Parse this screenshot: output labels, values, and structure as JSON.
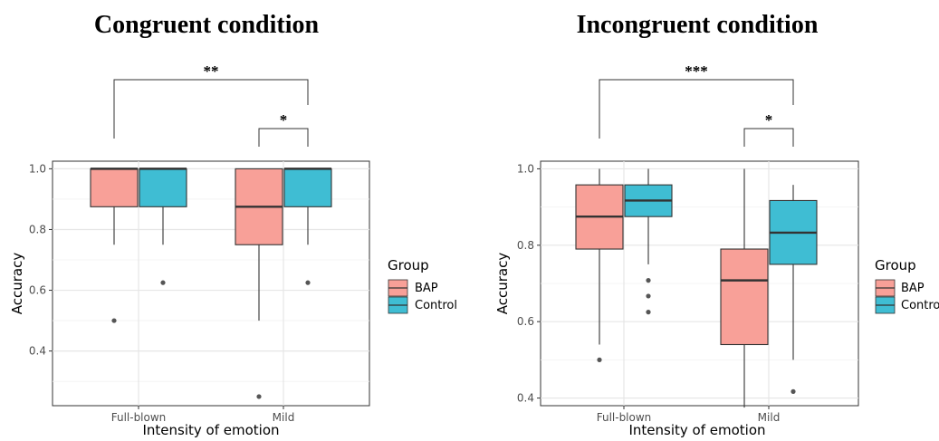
{
  "chart_data": [
    {
      "type": "box",
      "title": "Congruent condition",
      "xlabel": "Intensity of emotion",
      "ylabel": "Accuracy",
      "categories": [
        "Full-blown",
        "Mild"
      ],
      "ylim": [
        0.22,
        1.025
      ],
      "yticks": [
        "0.4",
        "0.6",
        "0.8",
        "1.0"
      ],
      "grid": true,
      "legend": {
        "title": "Group",
        "position": "right",
        "items": [
          "BAP",
          "Control"
        ]
      },
      "series": [
        {
          "name": "BAP",
          "color": "#F8A098",
          "boxes": [
            {
              "category": "Full-blown",
              "q1": 0.875,
              "median": 1.0,
              "q3": 1.0,
              "whisker_low": 0.75,
              "whisker_high": 1.0,
              "outliers": [
                0.5
              ]
            },
            {
              "category": "Mild",
              "q1": 0.75,
              "median": 0.875,
              "q3": 1.0,
              "whisker_low": 0.5,
              "whisker_high": 1.0,
              "outliers": [
                0.25
              ]
            }
          ]
        },
        {
          "name": "Control",
          "color": "#3FBDD3",
          "boxes": [
            {
              "category": "Full-blown",
              "q1": 0.875,
              "median": 1.0,
              "q3": 1.0,
              "whisker_low": 0.75,
              "whisker_high": 1.0,
              "outliers": [
                0.625
              ]
            },
            {
              "category": "Mild",
              "q1": 0.875,
              "median": 1.0,
              "q3": 1.0,
              "whisker_low": 0.75,
              "whisker_high": 1.0,
              "outliers": [
                0.625
              ]
            }
          ]
        }
      ],
      "annotations": [
        {
          "label": "**",
          "from": "Full-blown BAP",
          "to": "Mild Control"
        },
        {
          "label": "*",
          "from": "Mild BAP",
          "to": "Mild Control"
        }
      ]
    },
    {
      "type": "box",
      "title": "Incongruent condition",
      "xlabel": "Intensity of emotion",
      "ylabel": "Accuracy",
      "categories": [
        "Full-blown",
        "Mild"
      ],
      "ylim": [
        0.38,
        1.02
      ],
      "yticks": [
        "0.4",
        "0.6",
        "0.8",
        "1.0"
      ],
      "grid": true,
      "legend": {
        "title": "Group",
        "position": "right",
        "items": [
          "BAP",
          "Control"
        ]
      },
      "series": [
        {
          "name": "BAP",
          "color": "#F8A098",
          "boxes": [
            {
              "category": "Full-blown",
              "q1": 0.79,
              "median": 0.875,
              "q3": 0.958,
              "whisker_low": 0.54,
              "whisker_high": 1.0,
              "outliers": [
                0.5
              ]
            },
            {
              "category": "Mild",
              "q1": 0.54,
              "median": 0.708,
              "q3": 0.79,
              "whisker_low": 0.375,
              "whisker_high": 1.0,
              "outliers": []
            }
          ]
        },
        {
          "name": "Control",
          "color": "#3FBDD3",
          "boxes": [
            {
              "category": "Full-blown",
              "q1": 0.875,
              "median": 0.917,
              "q3": 0.958,
              "whisker_low": 0.75,
              "whisker_high": 1.0,
              "outliers": [
                0.708,
                0.667,
                0.625
              ]
            },
            {
              "category": "Mild",
              "q1": 0.75,
              "median": 0.833,
              "q3": 0.917,
              "whisker_low": 0.5,
              "whisker_high": 0.958,
              "outliers": [
                0.417
              ]
            }
          ]
        }
      ],
      "annotations": [
        {
          "label": "***",
          "from": "Full-blown BAP",
          "to": "Mild Control"
        },
        {
          "label": "*",
          "from": "Mild BAP",
          "to": "Mild Control"
        }
      ]
    }
  ]
}
